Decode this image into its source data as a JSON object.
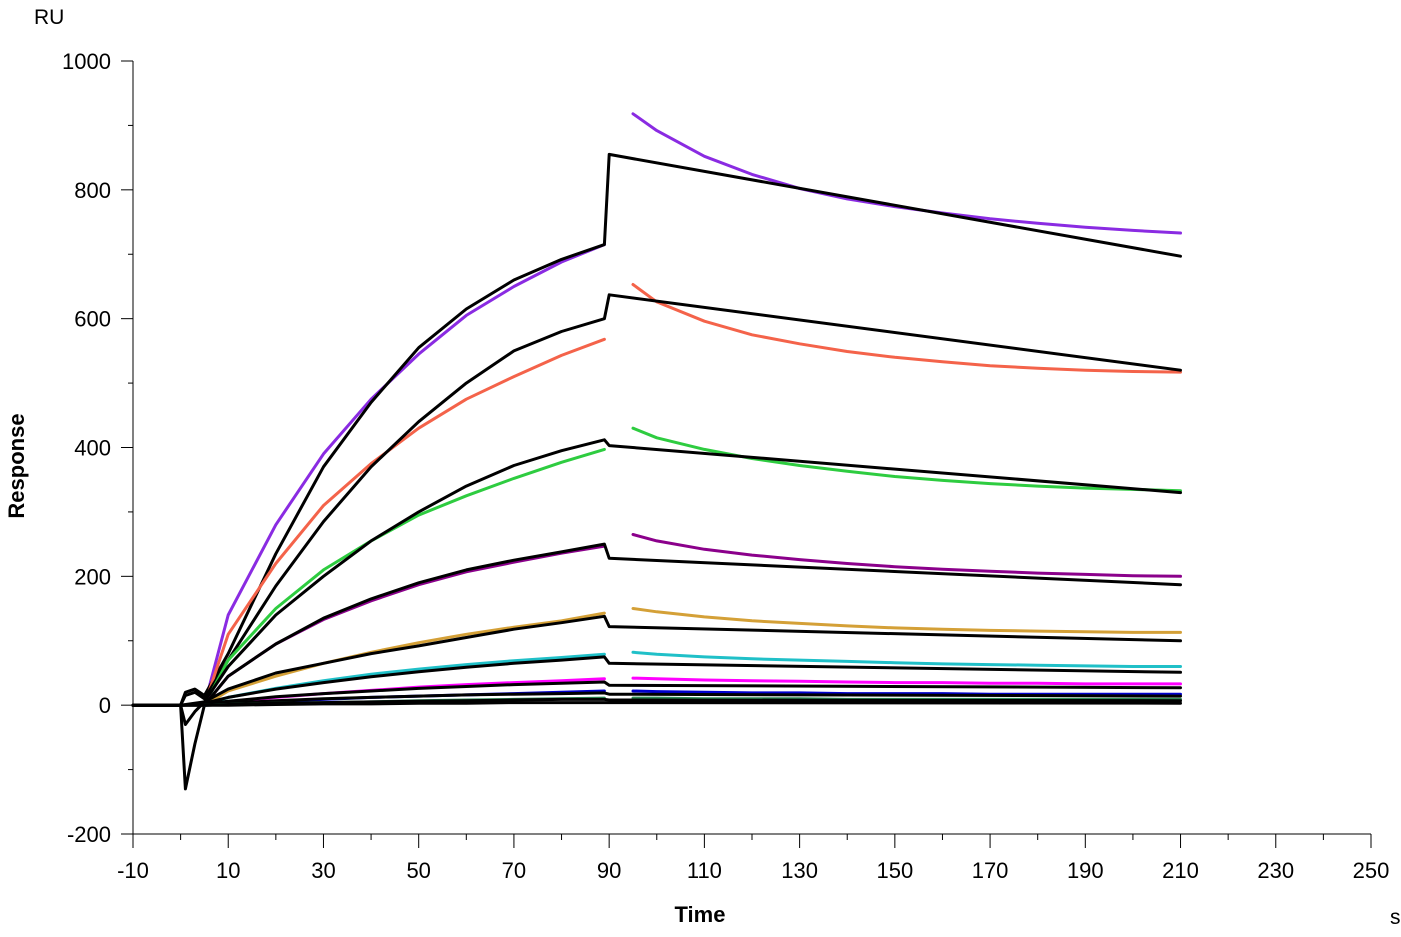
{
  "chart_data": {
    "type": "line",
    "title": "",
    "xlabel": "Time",
    "ylabel": "Response",
    "x_unit": "s",
    "y_unit": "RU",
    "xlim": [
      -10,
      250
    ],
    "ylim": [
      -200,
      1000
    ],
    "grid": false,
    "legend": "none",
    "x_ticks": [
      -10,
      10,
      30,
      50,
      70,
      90,
      110,
      130,
      150,
      170,
      190,
      210,
      230,
      250
    ],
    "x_tick_labels": [
      "-10",
      "10",
      "30",
      "50",
      "70",
      "90",
      "110",
      "130",
      "150",
      "170",
      "190",
      "210",
      "230",
      "250"
    ],
    "y_ticks": [
      -200,
      0,
      200,
      400,
      600,
      800,
      1000
    ],
    "y_tick_labels": [
      "-200",
      "0",
      "200",
      "400",
      "600",
      "800",
      "1000"
    ],
    "series": [
      {
        "color": "#8a2be2",
        "x": [
          5,
          10,
          20,
          30,
          40,
          50,
          60,
          70,
          80,
          89,
          null,
          95,
          100,
          110,
          120,
          130,
          140,
          150,
          160,
          170,
          180,
          190,
          200,
          210
        ],
        "y": [
          0,
          140,
          280,
          390,
          475,
          545,
          605,
          650,
          688,
          715,
          null,
          918,
          892,
          852,
          824,
          802,
          786,
          774,
          764,
          755,
          748,
          742,
          737,
          733
        ]
      },
      {
        "color": "#000000",
        "x": [
          -10,
          0,
          1,
          3,
          5,
          10,
          20,
          30,
          40,
          50,
          60,
          70,
          80,
          89,
          90,
          210
        ],
        "y": [
          0,
          0,
          20,
          25,
          15,
          80,
          235,
          370,
          470,
          555,
          615,
          660,
          692,
          715,
          855,
          697
        ]
      },
      {
        "color": "#f4634a",
        "x": [
          5,
          10,
          20,
          30,
          40,
          50,
          60,
          70,
          80,
          89,
          null,
          95,
          100,
          110,
          120,
          130,
          140,
          150,
          160,
          170,
          180,
          190,
          200,
          210
        ],
        "y": [
          0,
          110,
          220,
          310,
          375,
          430,
          475,
          510,
          543,
          568,
          null,
          653,
          626,
          596,
          575,
          561,
          549,
          540,
          533,
          527,
          523,
          520,
          518,
          517
        ]
      },
      {
        "color": "#000000",
        "x": [
          -10,
          0,
          1,
          3,
          5,
          10,
          20,
          30,
          40,
          50,
          60,
          70,
          80,
          89,
          90,
          210
        ],
        "y": [
          0,
          0,
          15,
          20,
          10,
          70,
          185,
          285,
          370,
          440,
          500,
          550,
          580,
          600,
          637,
          520
        ]
      },
      {
        "color": "#2ecc40",
        "x": [
          5,
          10,
          20,
          30,
          40,
          50,
          60,
          70,
          80,
          89,
          null,
          95,
          100,
          110,
          120,
          130,
          140,
          150,
          160,
          170,
          180,
          190,
          200,
          210
        ],
        "y": [
          0,
          70,
          150,
          210,
          255,
          295,
          325,
          352,
          377,
          397,
          null,
          430,
          415,
          397,
          383,
          372,
          363,
          355,
          349,
          344,
          340,
          337,
          335,
          333
        ]
      },
      {
        "color": "#000000",
        "x": [
          -10,
          0,
          1,
          3,
          5,
          10,
          20,
          30,
          40,
          50,
          60,
          70,
          80,
          89,
          90,
          210
        ],
        "y": [
          0,
          0,
          -30,
          -10,
          5,
          60,
          140,
          200,
          255,
          300,
          340,
          372,
          395,
          412,
          403,
          330
        ]
      },
      {
        "color": "#8b008b",
        "x": [
          5,
          10,
          20,
          30,
          40,
          50,
          60,
          70,
          80,
          89,
          null,
          95,
          100,
          110,
          120,
          130,
          140,
          150,
          160,
          170,
          180,
          190,
          200,
          210
        ],
        "y": [
          0,
          45,
          95,
          133,
          162,
          187,
          207,
          222,
          236,
          247,
          null,
          265,
          255,
          242,
          233,
          226,
          220,
          215,
          211,
          208,
          205,
          203,
          201,
          200
        ]
      },
      {
        "color": "#000000",
        "x": [
          -10,
          0,
          1,
          3,
          5,
          10,
          20,
          30,
          40,
          50,
          60,
          70,
          80,
          89,
          90,
          210
        ],
        "y": [
          0,
          0,
          -130,
          -60,
          0,
          45,
          95,
          135,
          165,
          190,
          210,
          225,
          238,
          250,
          228,
          187
        ]
      },
      {
        "color": "#d4a037",
        "x": [
          5,
          10,
          20,
          30,
          40,
          50,
          60,
          70,
          80,
          89,
          null,
          95,
          100,
          110,
          120,
          130,
          140,
          150,
          160,
          170,
          180,
          190,
          200,
          210
        ],
        "y": [
          0,
          22,
          45,
          65,
          82,
          97,
          110,
          121,
          131,
          143,
          null,
          150,
          145,
          137,
          131,
          127,
          123,
          120,
          118,
          116,
          115,
          114,
          113,
          113
        ]
      },
      {
        "color": "#000000",
        "x": [
          -10,
          0,
          5,
          10,
          20,
          30,
          40,
          50,
          60,
          70,
          80,
          89,
          90,
          210
        ],
        "y": [
          0,
          0,
          5,
          25,
          50,
          65,
          80,
          92,
          105,
          118,
          128,
          138,
          122,
          100
        ]
      },
      {
        "color": "#20c0c8",
        "x": [
          5,
          10,
          20,
          30,
          40,
          50,
          60,
          70,
          80,
          89,
          null,
          95,
          100,
          110,
          120,
          130,
          140,
          150,
          160,
          170,
          180,
          190,
          200,
          210
        ],
        "y": [
          0,
          12,
          26,
          38,
          48,
          56,
          63,
          69,
          74,
          79,
          null,
          82,
          79,
          75,
          72,
          70,
          68,
          66,
          64,
          63,
          62,
          61,
          60,
          60
        ]
      },
      {
        "color": "#000000",
        "x": [
          -10,
          0,
          5,
          10,
          20,
          30,
          40,
          50,
          60,
          70,
          80,
          89,
          90,
          210
        ],
        "y": [
          0,
          0,
          3,
          12,
          25,
          35,
          44,
          52,
          59,
          65,
          70,
          75,
          65,
          51
        ]
      },
      {
        "color": "#ff00ff",
        "x": [
          5,
          10,
          20,
          30,
          40,
          50,
          60,
          70,
          80,
          89,
          null,
          95,
          100,
          110,
          120,
          130,
          140,
          150,
          160,
          170,
          180,
          190,
          200,
          210
        ],
        "y": [
          0,
          5,
          12,
          18,
          23,
          28,
          32,
          35,
          38,
          41,
          null,
          42,
          41,
          39,
          38,
          37,
          36,
          35,
          35,
          34,
          34,
          33,
          33,
          33
        ]
      },
      {
        "color": "#000000",
        "x": [
          -10,
          0,
          5,
          10,
          20,
          30,
          40,
          50,
          60,
          70,
          80,
          89,
          90,
          210
        ],
        "y": [
          0,
          0,
          2,
          6,
          13,
          18,
          22,
          26,
          29,
          32,
          34,
          36,
          31,
          27
        ]
      },
      {
        "color": "#0000cd",
        "x": [
          5,
          10,
          20,
          30,
          40,
          50,
          60,
          70,
          80,
          89,
          null,
          95,
          100,
          110,
          120,
          130,
          140,
          150,
          160,
          170,
          180,
          190,
          200,
          210
        ],
        "y": [
          0,
          2,
          6,
          9,
          12,
          14,
          16,
          18,
          20,
          22,
          null,
          22,
          21,
          20,
          19,
          19,
          18,
          18,
          18,
          17,
          17,
          17,
          17,
          17
        ]
      },
      {
        "color": "#000000",
        "x": [
          -10,
          0,
          5,
          10,
          20,
          30,
          40,
          50,
          60,
          70,
          80,
          89,
          90,
          210
        ],
        "y": [
          0,
          0,
          1,
          3,
          7,
          10,
          12,
          14,
          16,
          17,
          18,
          19,
          17,
          14
        ]
      },
      {
        "color": "#2e8b57",
        "x": [
          5,
          10,
          20,
          30,
          40,
          50,
          60,
          70,
          80,
          89,
          null,
          95,
          100,
          110,
          120,
          130,
          140,
          150,
          160,
          170,
          180,
          190,
          200,
          210
        ],
        "y": [
          0,
          1,
          3,
          4,
          5,
          7,
          8,
          9,
          10,
          11,
          null,
          11,
          11,
          10,
          10,
          10,
          9,
          9,
          9,
          9,
          9,
          9,
          9,
          9
        ]
      },
      {
        "color": "#000000",
        "x": [
          -10,
          0,
          5,
          10,
          20,
          30,
          40,
          50,
          60,
          70,
          80,
          89,
          90,
          210
        ],
        "y": [
          0,
          0,
          0,
          1,
          3,
          4,
          5,
          6,
          7,
          8,
          9,
          9,
          8,
          7
        ]
      },
      {
        "color": "#000000",
        "x": [
          -10,
          0,
          5,
          10,
          20,
          30,
          40,
          50,
          60,
          70,
          80,
          89,
          90,
          210
        ],
        "y": [
          0,
          0,
          0,
          0,
          1,
          2,
          2,
          3,
          3,
          4,
          4,
          4,
          4,
          3
        ]
      }
    ]
  }
}
